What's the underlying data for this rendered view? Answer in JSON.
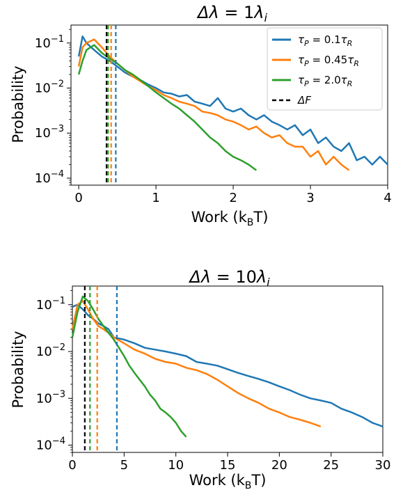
{
  "chart_data": [
    {
      "type": "line",
      "title": "Δλ = 1λ_i",
      "title_parts": {
        "delta": "Δ",
        "lambda": "λ",
        "eq": " = 1",
        "sub": "i"
      },
      "xlabel": {
        "main": "Work (k",
        "sub": "B",
        "tail": "T)"
      },
      "ylabel": "Probability",
      "yscale": "log",
      "xlim": [
        -0.1,
        4.0
      ],
      "ylim": [
        7e-05,
        0.25
      ],
      "xticks": [
        0,
        1,
        2,
        3,
        4
      ],
      "yticks": [
        {
          "value": 0.1,
          "exp": "−1"
        },
        {
          "value": 0.01,
          "exp": "−2"
        },
        {
          "value": 0.001,
          "exp": "−3"
        },
        {
          "value": 0.0001,
          "exp": "−4"
        }
      ],
      "grid": false,
      "legend_position": "top-right",
      "series": [
        {
          "name": "τP = 0.1τR",
          "label_parts": {
            "a": "P",
            "mid": " = 0.1",
            "b": "R"
          },
          "color": "#1f77b4",
          "x": [
            0.0,
            0.05,
            0.1,
            0.2,
            0.3,
            0.4,
            0.5,
            0.6,
            0.7,
            0.8,
            0.9,
            1.0,
            1.1,
            1.2,
            1.3,
            1.4,
            1.5,
            1.6,
            1.7,
            1.8,
            1.9,
            2.0,
            2.1,
            2.2,
            2.3,
            2.4,
            2.5,
            2.6,
            2.7,
            2.8,
            2.9,
            3.0,
            3.1,
            3.2,
            3.3,
            3.4,
            3.5,
            3.6,
            3.7,
            3.8,
            3.9,
            4.0
          ],
          "y": [
            0.05,
            0.14,
            0.1,
            0.07,
            0.05,
            0.04,
            0.03,
            0.022,
            0.018,
            0.015,
            0.012,
            0.01,
            0.008,
            0.0075,
            0.0065,
            0.007,
            0.005,
            0.0045,
            0.004,
            0.006,
            0.0035,
            0.003,
            0.0035,
            0.0025,
            0.002,
            0.0025,
            0.0018,
            0.0015,
            0.0012,
            0.0015,
            0.0009,
            0.0012,
            0.0006,
            0.0008,
            0.0005,
            0.0004,
            0.0006,
            0.00025,
            0.0003,
            0.0002,
            0.0003,
            0.0002
          ]
        },
        {
          "name": "τP = 0.45τR",
          "label_parts": {
            "a": "P",
            "mid": " = 0.45",
            "b": "R"
          },
          "color": "#ff7f0e",
          "x": [
            0.0,
            0.05,
            0.1,
            0.2,
            0.3,
            0.4,
            0.5,
            0.6,
            0.7,
            0.8,
            0.9,
            1.0,
            1.1,
            1.2,
            1.3,
            1.4,
            1.5,
            1.6,
            1.7,
            1.8,
            1.9,
            2.0,
            2.1,
            2.2,
            2.3,
            2.4,
            2.5,
            2.6,
            2.7,
            2.8,
            2.9,
            3.0,
            3.1,
            3.2,
            3.3,
            3.4,
            3.5
          ],
          "y": [
            0.03,
            0.08,
            0.1,
            0.12,
            0.08,
            0.05,
            0.035,
            0.025,
            0.018,
            0.014,
            0.011,
            0.009,
            0.007,
            0.006,
            0.005,
            0.0045,
            0.004,
            0.003,
            0.0028,
            0.0025,
            0.002,
            0.0018,
            0.0015,
            0.0012,
            0.0014,
            0.001,
            0.0008,
            0.0009,
            0.0006,
            0.0005,
            0.0005,
            0.0003,
            0.0004,
            0.0002,
            0.0003,
            0.0002,
            0.00015
          ]
        },
        {
          "name": "τP = 2.0τR",
          "label_parts": {
            "a": "P",
            "mid": " = 2.0",
            "b": "R"
          },
          "color": "#2ca02c",
          "x": [
            0.0,
            0.05,
            0.1,
            0.2,
            0.3,
            0.4,
            0.5,
            0.6,
            0.7,
            0.8,
            0.9,
            1.0,
            1.1,
            1.2,
            1.3,
            1.4,
            1.5,
            1.6,
            1.7,
            1.8,
            1.9,
            2.0,
            2.1,
            2.2,
            2.3
          ],
          "y": [
            0.02,
            0.04,
            0.07,
            0.09,
            0.06,
            0.045,
            0.035,
            0.025,
            0.02,
            0.015,
            0.011,
            0.008,
            0.006,
            0.0045,
            0.0035,
            0.0025,
            0.0018,
            0.0012,
            0.0008,
            0.0006,
            0.0004,
            0.0003,
            0.00025,
            0.0002,
            0.00015
          ]
        },
        {
          "name": "ΔF",
          "color": "#000000",
          "dashed": true
        }
      ],
      "vlines": [
        {
          "x": 0.36,
          "color": "#000000"
        },
        {
          "x": 0.38,
          "color": "#2ca02c"
        },
        {
          "x": 0.42,
          "color": "#ff7f0e"
        },
        {
          "x": 0.48,
          "color": "#1f77b4"
        }
      ]
    },
    {
      "type": "line",
      "title": "Δλ = 10λ_i",
      "title_parts": {
        "delta": "Δ",
        "lambda": "λ",
        "eq": " = 10",
        "sub": "i"
      },
      "xlabel": {
        "main": "Work (k",
        "sub": "B",
        "tail": "T)"
      },
      "ylabel": "Probability",
      "yscale": "log",
      "xlim": [
        0,
        30
      ],
      "ylim": [
        7e-05,
        0.25
      ],
      "xticks": [
        0,
        5,
        10,
        15,
        20,
        25,
        30
      ],
      "yticks": [
        {
          "value": 0.1,
          "exp": "−1"
        },
        {
          "value": 0.01,
          "exp": "−2"
        },
        {
          "value": 0.001,
          "exp": "−3"
        },
        {
          "value": 0.0001,
          "exp": "−4"
        }
      ],
      "grid": false,
      "series": [
        {
          "name": "τP = 0.1τR",
          "color": "#1f77b4",
          "x": [
            0.0,
            0.5,
            1.0,
            1.5,
            2.0,
            2.5,
            3.0,
            3.5,
            4.0,
            5.0,
            6.0,
            7.0,
            8.0,
            9.0,
            10.0,
            11.0,
            12.0,
            13.0,
            14.0,
            15.0,
            16.0,
            17.0,
            18.0,
            19.0,
            20.0,
            21.0,
            22.0,
            23.0,
            24.0,
            25.0,
            26.0,
            27.0,
            28.0,
            29.0,
            30.0
          ],
          "y": [
            0.09,
            0.1,
            0.08,
            0.06,
            0.05,
            0.04,
            0.035,
            0.03,
            0.02,
            0.018,
            0.015,
            0.012,
            0.011,
            0.01,
            0.009,
            0.008,
            0.006,
            0.0055,
            0.005,
            0.0042,
            0.0035,
            0.003,
            0.0026,
            0.0022,
            0.0018,
            0.0015,
            0.0012,
            0.001,
            0.0009,
            0.0008,
            0.0006,
            0.0005,
            0.0004,
            0.0003,
            0.00025
          ]
        },
        {
          "name": "τP = 0.45τR",
          "color": "#ff7f0e",
          "x": [
            0.0,
            0.5,
            1.0,
            1.5,
            2.0,
            2.5,
            3.0,
            3.5,
            4.0,
            5.0,
            6.0,
            7.0,
            8.0,
            9.0,
            10.0,
            11.0,
            12.0,
            13.0,
            14.0,
            15.0,
            16.0,
            17.0,
            18.0,
            19.0,
            20.0,
            21.0,
            22.0,
            23.0,
            24.0
          ],
          "y": [
            0.03,
            0.1,
            0.12,
            0.08,
            0.05,
            0.035,
            0.03,
            0.025,
            0.02,
            0.015,
            0.011,
            0.009,
            0.007,
            0.006,
            0.0055,
            0.0045,
            0.004,
            0.0033,
            0.0025,
            0.0018,
            0.0013,
            0.001,
            0.0008,
            0.0006,
            0.0005,
            0.0004,
            0.00035,
            0.0003,
            0.00025
          ]
        },
        {
          "name": "τP = 2.0τR",
          "color": "#2ca02c",
          "x": [
            0.0,
            0.5,
            1.0,
            1.5,
            2.0,
            2.5,
            3.0,
            3.5,
            4.0,
            4.5,
            5.0,
            5.5,
            6.0,
            6.5,
            7.0,
            7.5,
            8.0,
            8.5,
            9.0,
            9.5,
            10.0,
            10.5,
            11.0
          ],
          "y": [
            0.02,
            0.07,
            0.15,
            0.12,
            0.08,
            0.05,
            0.035,
            0.025,
            0.018,
            0.012,
            0.008,
            0.005,
            0.0035,
            0.0025,
            0.0018,
            0.0012,
            0.0009,
            0.0006,
            0.0005,
            0.0004,
            0.0003,
            0.0002,
            0.00015
          ]
        }
      ],
      "vlines": [
        {
          "x": 1.2,
          "color": "#000000"
        },
        {
          "x": 1.7,
          "color": "#2ca02c"
        },
        {
          "x": 2.4,
          "color": "#ff7f0e"
        },
        {
          "x": 4.3,
          "color": "#1f77b4"
        }
      ]
    }
  ]
}
